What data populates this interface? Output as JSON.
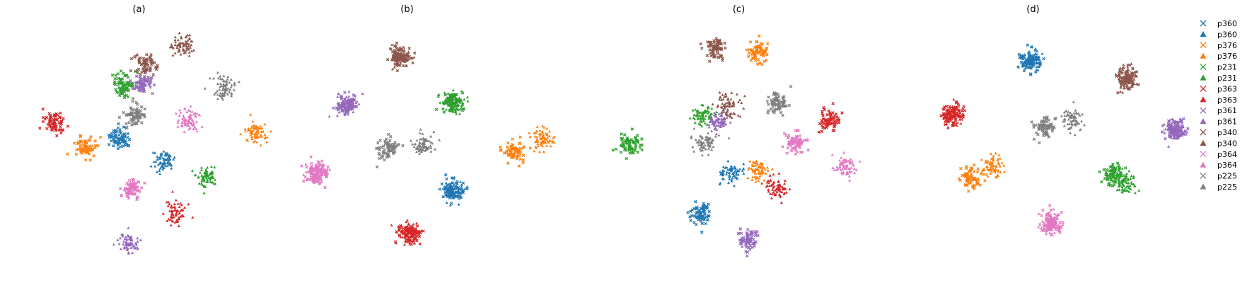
{
  "chart_data": [
    {
      "type": "scatter",
      "title": "(a)",
      "clusters": [
        {
          "series": "p360",
          "marker": "x",
          "cx": 0.37,
          "cy": 0.47
        },
        {
          "series": "p360",
          "marker": "triangle",
          "cx": 0.51,
          "cy": 0.56
        },
        {
          "series": "p376",
          "marker": "x",
          "cx": 0.26,
          "cy": 0.51
        },
        {
          "series": "p376",
          "marker": "triangle",
          "cx": 0.81,
          "cy": 0.45
        },
        {
          "series": "p231",
          "marker": "x",
          "cx": 0.38,
          "cy": 0.26
        },
        {
          "series": "p231",
          "marker": "triangle",
          "cx": 0.65,
          "cy": 0.62
        },
        {
          "series": "p363",
          "marker": "x",
          "cx": 0.16,
          "cy": 0.41
        },
        {
          "series": "p363",
          "marker": "triangle",
          "cx": 0.55,
          "cy": 0.77
        },
        {
          "series": "p361",
          "marker": "x",
          "cx": 0.44,
          "cy": 0.25
        },
        {
          "series": "p361",
          "marker": "triangle",
          "cx": 0.4,
          "cy": 0.89
        },
        {
          "series": "p340",
          "marker": "x",
          "cx": 0.45,
          "cy": 0.18
        },
        {
          "series": "p340",
          "marker": "triangle",
          "cx": 0.57,
          "cy": 0.1
        },
        {
          "series": "p364",
          "marker": "x",
          "cx": 0.41,
          "cy": 0.67
        },
        {
          "series": "p364",
          "marker": "triangle",
          "cx": 0.59,
          "cy": 0.4
        },
        {
          "series": "p225",
          "marker": "x",
          "cx": 0.42,
          "cy": 0.38
        },
        {
          "series": "p225",
          "marker": "triangle",
          "cx": 0.71,
          "cy": 0.27
        }
      ]
    },
    {
      "type": "scatter",
      "title": "(b)",
      "clusters": [
        {
          "series": "p360",
          "marker": "x",
          "cx": 0.51,
          "cy": 0.68
        },
        {
          "series": "p360",
          "marker": "triangle",
          "cx": 0.51,
          "cy": 0.68
        },
        {
          "series": "p376",
          "marker": "x",
          "cx": 0.71,
          "cy": 0.52
        },
        {
          "series": "p376",
          "marker": "triangle",
          "cx": 0.8,
          "cy": 0.47
        },
        {
          "series": "p231",
          "marker": "x",
          "cx": 0.51,
          "cy": 0.33
        },
        {
          "series": "p231",
          "marker": "triangle",
          "cx": 0.51,
          "cy": 0.33
        },
        {
          "series": "p363",
          "marker": "x",
          "cx": 0.37,
          "cy": 0.85
        },
        {
          "series": "p363",
          "marker": "triangle",
          "cx": 0.37,
          "cy": 0.85
        },
        {
          "series": "p361",
          "marker": "x",
          "cx": 0.17,
          "cy": 0.34
        },
        {
          "series": "p361",
          "marker": "triangle",
          "cx": 0.17,
          "cy": 0.34
        },
        {
          "series": "p340",
          "marker": "x",
          "cx": 0.34,
          "cy": 0.15
        },
        {
          "series": "p340",
          "marker": "triangle",
          "cx": 0.34,
          "cy": 0.15
        },
        {
          "series": "p364",
          "marker": "x",
          "cx": 0.07,
          "cy": 0.61
        },
        {
          "series": "p364",
          "marker": "triangle",
          "cx": 0.07,
          "cy": 0.61
        },
        {
          "series": "p225",
          "marker": "x",
          "cx": 0.3,
          "cy": 0.51
        },
        {
          "series": "p225",
          "marker": "triangle",
          "cx": 0.41,
          "cy": 0.5
        }
      ]
    },
    {
      "type": "scatter",
      "title": "(c)",
      "clusters": [
        {
          "series": "p360",
          "marker": "x",
          "cx": 0.31,
          "cy": 0.77
        },
        {
          "series": "p360",
          "marker": "triangle",
          "cx": 0.41,
          "cy": 0.61
        },
        {
          "series": "p376",
          "marker": "x",
          "cx": 0.5,
          "cy": 0.13
        },
        {
          "series": "p376",
          "marker": "triangle",
          "cx": 0.5,
          "cy": 0.6
        },
        {
          "series": "p231",
          "marker": "x",
          "cx": 0.08,
          "cy": 0.5
        },
        {
          "series": "p231",
          "marker": "triangle",
          "cx": 0.32,
          "cy": 0.38
        },
        {
          "series": "p363",
          "marker": "x",
          "cx": 0.73,
          "cy": 0.4
        },
        {
          "series": "p363",
          "marker": "triangle",
          "cx": 0.56,
          "cy": 0.67
        },
        {
          "series": "p361",
          "marker": "x",
          "cx": 0.47,
          "cy": 0.87
        },
        {
          "series": "p361",
          "marker": "triangle",
          "cx": 0.37,
          "cy": 0.4
        },
        {
          "series": "p340",
          "marker": "x",
          "cx": 0.36,
          "cy": 0.12
        },
        {
          "series": "p340",
          "marker": "triangle",
          "cx": 0.4,
          "cy": 0.34
        },
        {
          "series": "p364",
          "marker": "x",
          "cx": 0.62,
          "cy": 0.49
        },
        {
          "series": "p364",
          "marker": "triangle",
          "cx": 0.78,
          "cy": 0.58
        },
        {
          "series": "p225",
          "marker": "x",
          "cx": 0.56,
          "cy": 0.33
        },
        {
          "series": "p225",
          "marker": "triangle",
          "cx": 0.33,
          "cy": 0.49
        }
      ]
    },
    {
      "type": "scatter",
      "title": "(d)",
      "clusters": [
        {
          "series": "p360",
          "marker": "x",
          "cx": 0.38,
          "cy": 0.16
        },
        {
          "series": "p360",
          "marker": "triangle",
          "cx": 0.38,
          "cy": 0.16
        },
        {
          "series": "p376",
          "marker": "x",
          "cx": 0.19,
          "cy": 0.63
        },
        {
          "series": "p376",
          "marker": "triangle",
          "cx": 0.26,
          "cy": 0.58
        },
        {
          "series": "p231",
          "marker": "x",
          "cx": 0.65,
          "cy": 0.62
        },
        {
          "series": "p231",
          "marker": "triangle",
          "cx": 0.69,
          "cy": 0.65
        },
        {
          "series": "p363",
          "marker": "x",
          "cx": 0.13,
          "cy": 0.38
        },
        {
          "series": "p363",
          "marker": "triangle",
          "cx": 0.13,
          "cy": 0.38
        },
        {
          "series": "p361",
          "marker": "x",
          "cx": 0.85,
          "cy": 0.44
        },
        {
          "series": "p361",
          "marker": "triangle",
          "cx": 0.85,
          "cy": 0.44
        },
        {
          "series": "p340",
          "marker": "x",
          "cx": 0.69,
          "cy": 0.23
        },
        {
          "series": "p340",
          "marker": "triangle",
          "cx": 0.69,
          "cy": 0.23
        },
        {
          "series": "p364",
          "marker": "x",
          "cx": 0.45,
          "cy": 0.81
        },
        {
          "series": "p364",
          "marker": "triangle",
          "cx": 0.45,
          "cy": 0.81
        },
        {
          "series": "p225",
          "marker": "x",
          "cx": 0.43,
          "cy": 0.43
        },
        {
          "series": "p225",
          "marker": "triangle",
          "cx": 0.52,
          "cy": 0.4
        }
      ]
    }
  ],
  "legend": {
    "placement": "right",
    "entries": [
      {
        "label": "p360",
        "marker": "x",
        "color": "#1f77b4"
      },
      {
        "label": "p360",
        "marker": "triangle",
        "color": "#1f77b4"
      },
      {
        "label": "p376",
        "marker": "x",
        "color": "#ff7f0e"
      },
      {
        "label": "p376",
        "marker": "triangle",
        "color": "#ff7f0e"
      },
      {
        "label": "p231",
        "marker": "x",
        "color": "#2ca02c"
      },
      {
        "label": "p231",
        "marker": "triangle",
        "color": "#2ca02c"
      },
      {
        "label": "p363",
        "marker": "x",
        "color": "#d62728"
      },
      {
        "label": "p363",
        "marker": "triangle",
        "color": "#d62728"
      },
      {
        "label": "p361",
        "marker": "x",
        "color": "#9467bd"
      },
      {
        "label": "p361",
        "marker": "triangle",
        "color": "#9467bd"
      },
      {
        "label": "p340",
        "marker": "x",
        "color": "#8c564b"
      },
      {
        "label": "p340",
        "marker": "triangle",
        "color": "#8c564b"
      },
      {
        "label": "p364",
        "marker": "x",
        "color": "#e377c2"
      },
      {
        "label": "p364",
        "marker": "triangle",
        "color": "#e377c2"
      },
      {
        "label": "p225",
        "marker": "x",
        "color": "#7f7f7f"
      },
      {
        "label": "p225",
        "marker": "triangle",
        "color": "#7f7f7f"
      }
    ]
  },
  "colors": {
    "p360": "#1f77b4",
    "p376": "#ff7f0e",
    "p231": "#2ca02c",
    "p363": "#d62728",
    "p361": "#9467bd",
    "p340": "#8c564b",
    "p364": "#e377c2",
    "p225": "#7f7f7f"
  }
}
